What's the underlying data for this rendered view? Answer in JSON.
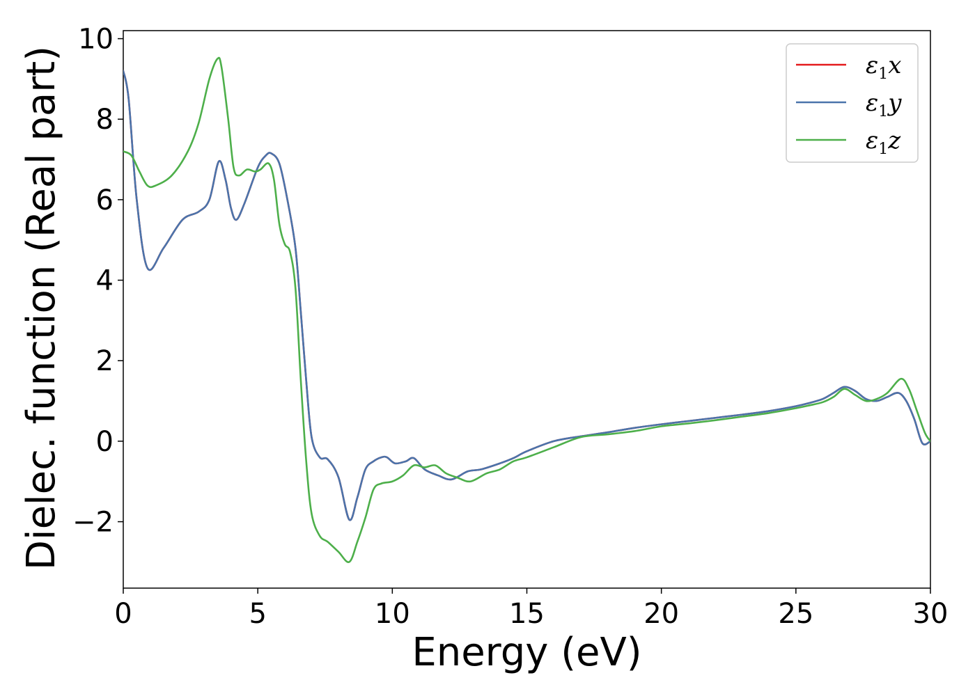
{
  "chart_data": {
    "type": "line",
    "title": "",
    "xlabel": "Energy (eV)",
    "ylabel": "Dielec. function (Real part)",
    "xlim": [
      0,
      30
    ],
    "ylim": [
      -3.65,
      10.2
    ],
    "xticks": [
      0,
      5,
      10,
      15,
      20,
      25,
      30
    ],
    "xtick_labels": [
      "0",
      "5",
      "10",
      "15",
      "20",
      "25",
      "30"
    ],
    "yticks": [
      -2,
      0,
      2,
      4,
      6,
      8,
      10
    ],
    "ytick_labels": [
      "−2",
      "0",
      "2",
      "4",
      "6",
      "8",
      "10"
    ],
    "grid": false,
    "legend_position": "top-right",
    "series": [
      {
        "name": "ε1x",
        "symbol": "ε",
        "sub": "1",
        "var": "x",
        "color": "#e41a1c",
        "x": [
          0,
          0.2,
          0.5,
          0.9,
          1.5,
          2.2,
          2.8,
          3.2,
          3.55,
          3.8,
          4.0,
          4.2,
          4.5,
          5.0,
          5.3,
          5.5,
          5.8,
          6.1,
          6.4,
          6.6,
          6.8,
          7.0,
          7.3,
          7.6,
          8.0,
          8.4,
          8.7,
          9.0,
          9.3,
          9.6,
          9.8,
          10.1,
          10.5,
          10.8,
          11.2,
          11.7,
          12.2,
          12.8,
          13.3,
          14.0,
          14.5,
          15.0,
          16.0,
          17.0,
          18.0,
          19.0,
          20.0,
          21.0,
          22.0,
          23.0,
          24.0,
          25.0,
          25.5,
          26.0,
          26.4,
          26.8,
          27.2,
          27.6,
          28.0,
          28.4,
          28.8,
          29.1,
          29.4,
          29.7,
          30.0
        ],
        "y": [
          9.2,
          8.5,
          6.0,
          4.3,
          4.8,
          5.5,
          5.7,
          6.0,
          6.95,
          6.5,
          5.8,
          5.5,
          5.9,
          6.8,
          7.1,
          7.15,
          6.9,
          6.0,
          4.8,
          3.2,
          1.5,
          0.1,
          -0.4,
          -0.45,
          -0.9,
          -1.95,
          -1.4,
          -0.7,
          -0.5,
          -0.4,
          -0.4,
          -0.55,
          -0.5,
          -0.42,
          -0.7,
          -0.85,
          -0.95,
          -0.75,
          -0.7,
          -0.55,
          -0.42,
          -0.25,
          0.0,
          0.12,
          0.22,
          0.33,
          0.42,
          0.5,
          0.58,
          0.66,
          0.75,
          0.87,
          0.95,
          1.05,
          1.2,
          1.35,
          1.25,
          1.05,
          1.0,
          1.1,
          1.2,
          1.0,
          0.55,
          -0.05,
          0.0
        ]
      },
      {
        "name": "ε1y",
        "symbol": "ε",
        "sub": "1",
        "var": "y",
        "color": "#4a74ab",
        "x": [
          0,
          0.2,
          0.5,
          0.9,
          1.5,
          2.2,
          2.8,
          3.2,
          3.55,
          3.8,
          4.0,
          4.2,
          4.5,
          5.0,
          5.3,
          5.5,
          5.8,
          6.1,
          6.4,
          6.6,
          6.8,
          7.0,
          7.3,
          7.6,
          8.0,
          8.4,
          8.7,
          9.0,
          9.3,
          9.6,
          9.8,
          10.1,
          10.5,
          10.8,
          11.2,
          11.7,
          12.2,
          12.8,
          13.3,
          14.0,
          14.5,
          15.0,
          16.0,
          17.0,
          18.0,
          19.0,
          20.0,
          21.0,
          22.0,
          23.0,
          24.0,
          25.0,
          25.5,
          26.0,
          26.4,
          26.8,
          27.2,
          27.6,
          28.0,
          28.4,
          28.8,
          29.1,
          29.4,
          29.7,
          30.0
        ],
        "y": [
          9.2,
          8.5,
          6.0,
          4.3,
          4.8,
          5.5,
          5.7,
          6.0,
          6.95,
          6.5,
          5.8,
          5.5,
          5.9,
          6.8,
          7.1,
          7.15,
          6.9,
          6.0,
          4.8,
          3.2,
          1.5,
          0.1,
          -0.4,
          -0.45,
          -0.9,
          -1.95,
          -1.4,
          -0.7,
          -0.5,
          -0.4,
          -0.4,
          -0.55,
          -0.5,
          -0.42,
          -0.7,
          -0.85,
          -0.95,
          -0.75,
          -0.7,
          -0.55,
          -0.42,
          -0.25,
          0.0,
          0.12,
          0.22,
          0.33,
          0.42,
          0.5,
          0.58,
          0.66,
          0.75,
          0.87,
          0.95,
          1.05,
          1.2,
          1.35,
          1.25,
          1.05,
          1.0,
          1.1,
          1.2,
          1.0,
          0.55,
          -0.05,
          0.0
        ]
      },
      {
        "name": "ε1z",
        "symbol": "ε",
        "sub": "1",
        "var": "z",
        "color": "#4daf4a",
        "x": [
          0,
          0.3,
          0.6,
          0.9,
          1.2,
          1.8,
          2.4,
          2.8,
          3.2,
          3.5,
          3.65,
          3.9,
          4.1,
          4.3,
          4.6,
          4.9,
          5.1,
          5.4,
          5.6,
          5.8,
          6.0,
          6.2,
          6.4,
          6.6,
          6.8,
          7.0,
          7.3,
          7.6,
          8.0,
          8.4,
          8.7,
          9.0,
          9.3,
          9.6,
          10.0,
          10.4,
          10.8,
          11.2,
          11.6,
          12.0,
          12.4,
          12.9,
          13.5,
          14.0,
          14.5,
          15.0,
          16.0,
          17.0,
          18.0,
          19.0,
          20.0,
          21.0,
          22.0,
          23.0,
          24.0,
          25.0,
          25.5,
          26.0,
          26.4,
          26.8,
          27.2,
          27.6,
          28.0,
          28.4,
          28.9,
          29.2,
          29.5,
          29.8,
          30.0
        ],
        "y": [
          7.2,
          7.1,
          6.7,
          6.35,
          6.35,
          6.6,
          7.2,
          7.9,
          9.0,
          9.5,
          9.3,
          8.0,
          6.8,
          6.6,
          6.75,
          6.7,
          6.75,
          6.9,
          6.5,
          5.4,
          4.9,
          4.7,
          3.8,
          1.5,
          -0.5,
          -1.8,
          -2.35,
          -2.5,
          -2.75,
          -3.0,
          -2.5,
          -1.9,
          -1.2,
          -1.05,
          -1.0,
          -0.85,
          -0.6,
          -0.65,
          -0.6,
          -0.8,
          -0.9,
          -1.0,
          -0.8,
          -0.7,
          -0.5,
          -0.4,
          -0.15,
          0.1,
          0.17,
          0.25,
          0.37,
          0.44,
          0.52,
          0.61,
          0.7,
          0.82,
          0.89,
          0.97,
          1.1,
          1.3,
          1.15,
          1.0,
          1.05,
          1.2,
          1.55,
          1.3,
          0.75,
          0.2,
          0.0
        ]
      }
    ]
  }
}
